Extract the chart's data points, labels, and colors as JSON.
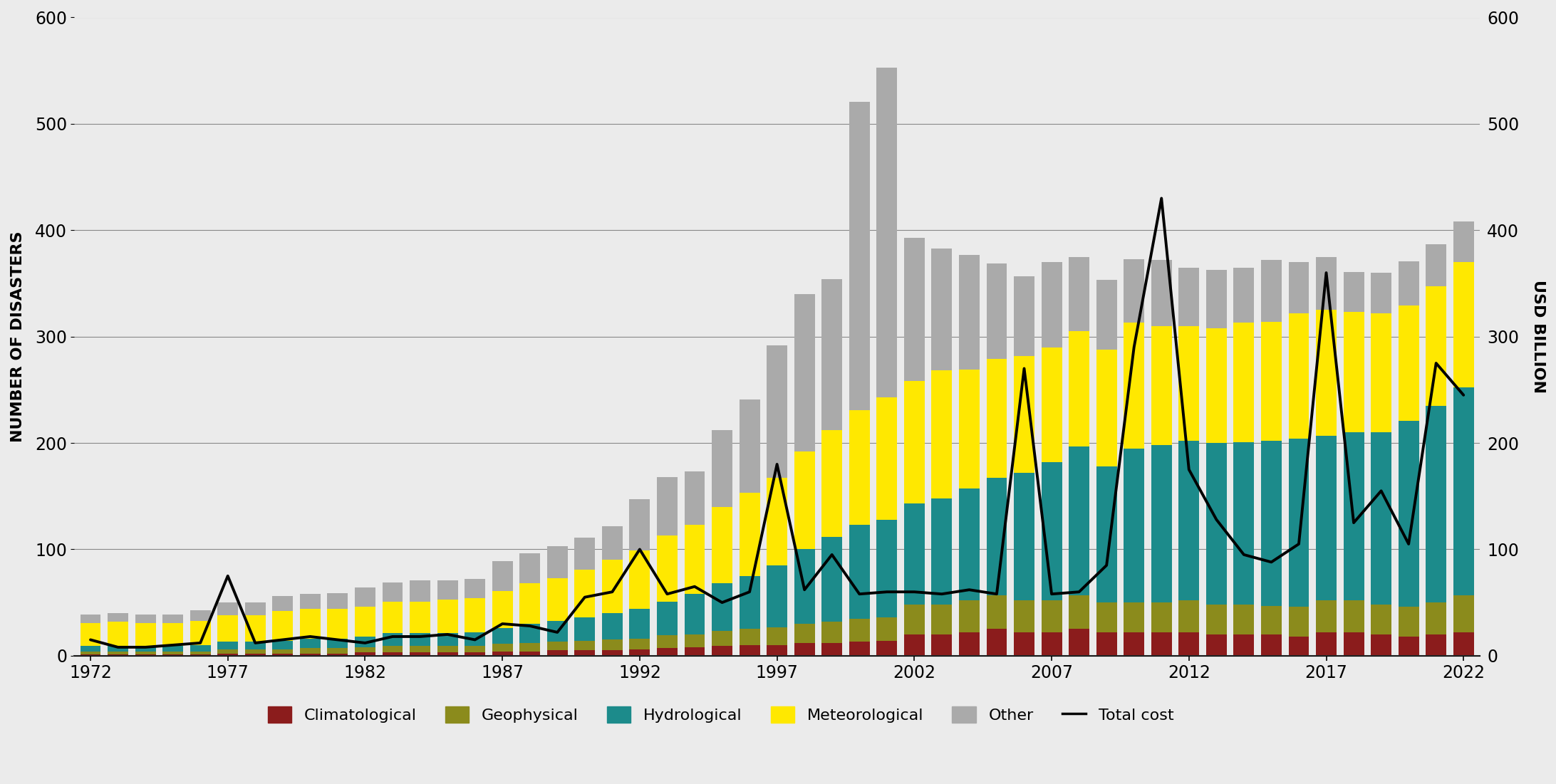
{
  "years": [
    1972,
    1973,
    1974,
    1975,
    1976,
    1977,
    1978,
    1979,
    1980,
    1981,
    1982,
    1983,
    1984,
    1985,
    1986,
    1987,
    1988,
    1989,
    1990,
    1991,
    1992,
    1993,
    1994,
    1995,
    1996,
    1997,
    1998,
    1999,
    2000,
    2001,
    2002,
    2003,
    2004,
    2005,
    2006,
    2007,
    2008,
    2009,
    2010,
    2011,
    2012,
    2013,
    2014,
    2015,
    2016,
    2017,
    2018,
    2019,
    2020,
    2021,
    2022
  ],
  "climatological": [
    1,
    1,
    1,
    1,
    1,
    2,
    2,
    2,
    2,
    2,
    3,
    3,
    3,
    3,
    3,
    4,
    4,
    5,
    5,
    5,
    6,
    7,
    8,
    9,
    10,
    10,
    12,
    12,
    13,
    14,
    20,
    20,
    22,
    25,
    22,
    22,
    25,
    22,
    22,
    22,
    22,
    20,
    20,
    20,
    18,
    22,
    22,
    20,
    18,
    20,
    22
  ],
  "geophysical": [
    3,
    3,
    3,
    3,
    3,
    4,
    4,
    4,
    5,
    5,
    5,
    6,
    6,
    6,
    6,
    7,
    8,
    8,
    9,
    10,
    10,
    12,
    12,
    14,
    15,
    17,
    18,
    20,
    22,
    22,
    28,
    28,
    30,
    32,
    30,
    30,
    32,
    28,
    28,
    28,
    30,
    28,
    28,
    27,
    28,
    30,
    30,
    28,
    28,
    30,
    35
  ],
  "hydrological": [
    5,
    5,
    5,
    5,
    6,
    7,
    7,
    8,
    9,
    9,
    10,
    12,
    12,
    12,
    13,
    15,
    18,
    20,
    22,
    25,
    28,
    32,
    38,
    45,
    50,
    58,
    70,
    80,
    88,
    92,
    95,
    100,
    105,
    110,
    120,
    130,
    140,
    128,
    145,
    148,
    150,
    152,
    153,
    155,
    158,
    155,
    158,
    162,
    175,
    185,
    195
  ],
  "meteorological": [
    22,
    23,
    22,
    22,
    23,
    25,
    25,
    28,
    28,
    28,
    28,
    30,
    30,
    32,
    32,
    35,
    38,
    40,
    45,
    50,
    55,
    62,
    65,
    72,
    78,
    82,
    92,
    100,
    108,
    115,
    115,
    120,
    112,
    112,
    110,
    108,
    108,
    110,
    118,
    112,
    108,
    108,
    112,
    112,
    118,
    118,
    113,
    112,
    108,
    112,
    118
  ],
  "other": [
    8,
    8,
    8,
    8,
    10,
    12,
    12,
    14,
    14,
    15,
    18,
    18,
    20,
    18,
    18,
    28,
    28,
    30,
    30,
    32,
    48,
    55,
    50,
    72,
    88,
    125,
    148,
    142,
    290,
    310,
    135,
    115,
    108,
    90,
    75,
    80,
    70,
    65,
    60,
    62,
    55,
    55,
    52,
    58,
    48,
    50,
    38,
    38,
    42,
    40,
    38
  ],
  "total_cost": [
    15,
    8,
    8,
    10,
    12,
    75,
    12,
    15,
    18,
    15,
    12,
    18,
    18,
    20,
    15,
    30,
    28,
    22,
    55,
    60,
    100,
    58,
    65,
    50,
    60,
    180,
    62,
    95,
    58,
    60,
    60,
    58,
    62,
    58,
    270,
    58,
    60,
    85,
    290,
    430,
    175,
    128,
    95,
    88,
    105,
    360,
    125,
    155,
    105,
    275,
    245
  ],
  "colors": {
    "climatological": "#8B1C1C",
    "geophysical": "#8B8B1C",
    "hydrological": "#1C8B8B",
    "meteorological": "#FFE800",
    "other": "#AAAAAA"
  },
  "background_color": "#EBEBEB",
  "ylim": [
    0,
    600
  ],
  "yticks": [
    0,
    100,
    200,
    300,
    400,
    500,
    600
  ],
  "ylabel_left": "NUMBER OF DISASTERS",
  "ylabel_right": "USD BILLION",
  "xlabel_ticks": [
    1972,
    1977,
    1982,
    1987,
    1992,
    1997,
    2002,
    2007,
    2012,
    2017,
    2022
  ]
}
